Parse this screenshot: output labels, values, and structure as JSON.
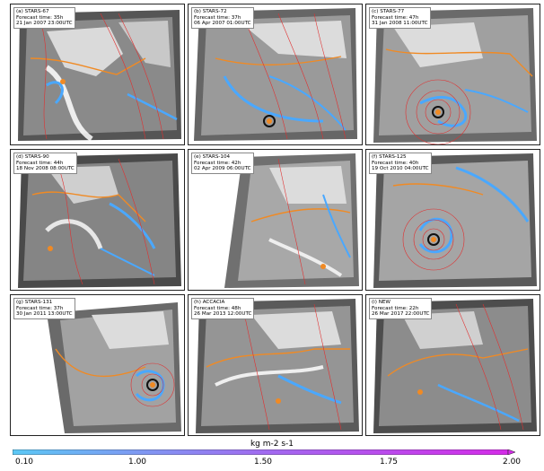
{
  "panels": [
    {
      "id": "a",
      "title": "(a) STARS-67",
      "forecast": "Forecast time: 35h",
      "date": "21 Jan 2007 23:00UTC"
    },
    {
      "id": "b",
      "title": "(b) STARS-72",
      "forecast": "Forecast time: 37h",
      "date": "06 Apr 2007 01:00UTC"
    },
    {
      "id": "c",
      "title": "(c) STARS-77",
      "forecast": "Forecast time: 47h",
      "date": "31 Jan 2008 11:00UTC"
    },
    {
      "id": "d",
      "title": "(d) STARS-90",
      "forecast": "Forecast time: 44h",
      "date": "18 Nov 2008 08:00UTC"
    },
    {
      "id": "e",
      "title": "(e) STARS-104",
      "forecast": "Forecast time: 42h",
      "date": "02 Apr 2009 06:00UTC"
    },
    {
      "id": "f",
      "title": "(f) STARS-125",
      "forecast": "Forecast time: 40h",
      "date": "19 Oct 2010 04:00UTC"
    },
    {
      "id": "g",
      "title": "(g) STARS-131",
      "forecast": "Forecast time: 37h",
      "date": "30 Jan 2011 13:00UTC"
    },
    {
      "id": "h",
      "title": "(h) ACCACIA",
      "forecast": "Forecast time: 48h",
      "date": "26 Mar 2013 12:00UTC"
    },
    {
      "id": "i",
      "title": "(i) NEW",
      "forecast": "Forecast time: 22h",
      "date": "26 Mar 2017 22:00UTC"
    }
  ],
  "colorbar": {
    "title": "kg m-2 s-1",
    "ticks": [
      "0.10",
      "1.00",
      "1.50",
      "1.75",
      "2.00"
    ],
    "colors": [
      "#5bc8f5",
      "#a06cf0",
      "#d42be8"
    ]
  },
  "colors": {
    "isobar": "#e03030",
    "ice_edge": "#f08a24",
    "moisture": "#4aa8ff",
    "land": "#d8d8d8",
    "cyclone_center": "#f08a24"
  }
}
